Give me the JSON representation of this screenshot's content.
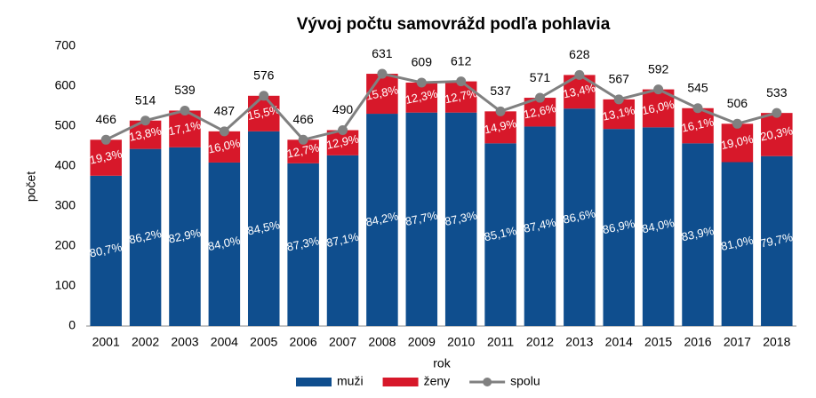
{
  "chart_data": {
    "type": "stacked-bar-line",
    "title": "Vývoj počtu samovrážd podľa pohlavia",
    "x_label": "rok",
    "y_label": "počet",
    "categories": [
      "2001",
      "2002",
      "2003",
      "2004",
      "2005",
      "2006",
      "2007",
      "2008",
      "2009",
      "2010",
      "2011",
      "2012",
      "2013",
      "2014",
      "2015",
      "2016",
      "2017",
      "2018"
    ],
    "ylim": [
      0,
      700
    ],
    "yticks": [
      0,
      100,
      200,
      300,
      400,
      500,
      600,
      700
    ],
    "grid": false,
    "legend": "bottom",
    "series": [
      {
        "name": "muži",
        "color": "#0f4e8e",
        "kind": "bar",
        "values": [
          376,
          443,
          447,
          409,
          487,
          407,
          427,
          531,
          534,
          534,
          457,
          499,
          544,
          493,
          497,
          457,
          410,
          425
        ],
        "share_labels": [
          "80,7%",
          "86,2%",
          "82,9%",
          "84,0%",
          "84,5%",
          "87,3%",
          "87,1%",
          "84,2%",
          "87,7%",
          "87,3%",
          "85,1%",
          "87,4%",
          "86,6%",
          "86,9%",
          "84,0%",
          "83,9%",
          "81,0%",
          "79,7%"
        ]
      },
      {
        "name": "ženy",
        "color": "#d7182a",
        "kind": "bar",
        "values": [
          90,
          71,
          92,
          78,
          89,
          59,
          63,
          100,
          75,
          78,
          80,
          72,
          84,
          74,
          95,
          88,
          96,
          108
        ],
        "share_labels": [
          "19,3%",
          "13,8%",
          "17,1%",
          "16,0%",
          "15,5%",
          "12,7%",
          "12,9%",
          "15,8%",
          "12,3%",
          "12,7%",
          "14,9%",
          "12,6%",
          "13,4%",
          "13,1%",
          "16,0%",
          "16,1%",
          "19,0%",
          "20,3%"
        ]
      },
      {
        "name": "spolu",
        "color": "#808080",
        "kind": "line",
        "values": [
          466,
          514,
          539,
          487,
          576,
          466,
          490,
          631,
          609,
          612,
          537,
          571,
          628,
          567,
          592,
          545,
          506,
          533
        ]
      }
    ]
  }
}
